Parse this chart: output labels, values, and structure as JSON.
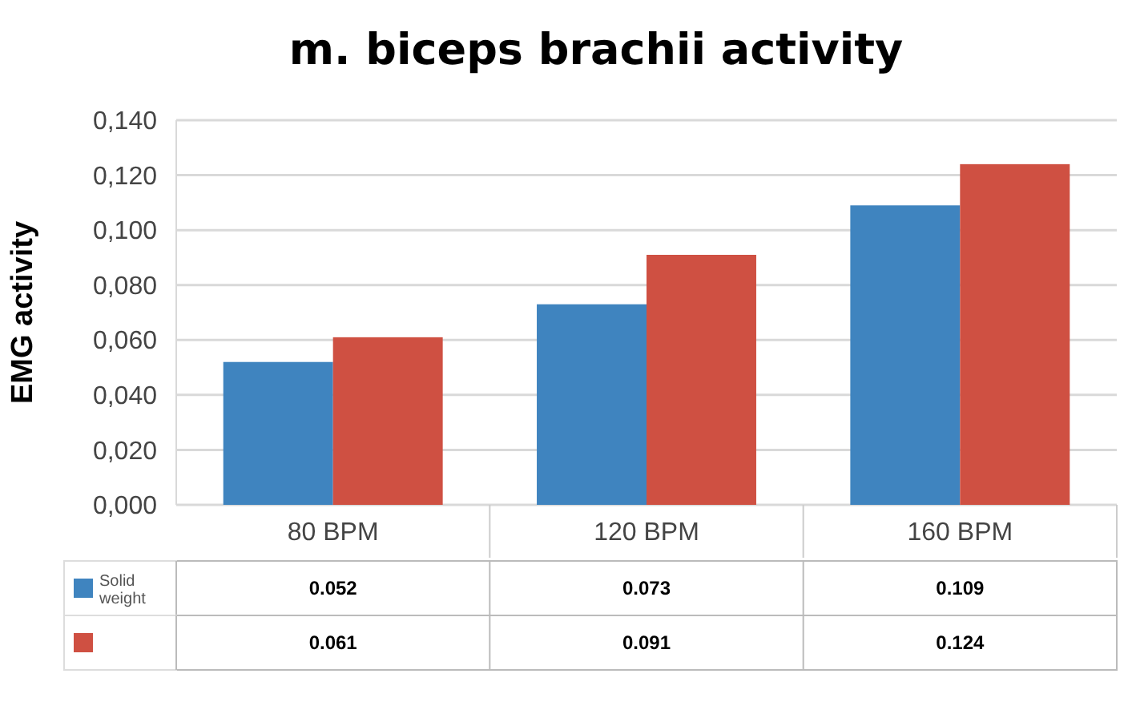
{
  "chart_data": {
    "type": "bar",
    "title": "m. biceps brachii activity",
    "ylabel": "EMG activity",
    "categories": [
      "80 BPM",
      "120 BPM",
      "160 BPM"
    ],
    "series": [
      {
        "name": "Solid weight",
        "color": "#3f84bf",
        "values": [
          0.052,
          0.073,
          0.109
        ]
      },
      {
        "color": "#cf5042",
        "values": [
          0.061,
          0.091,
          0.124
        ]
      }
    ],
    "ylim": [
      0,
      0.14
    ],
    "yticks": [
      {
        "value": 0,
        "label": "0,000"
      },
      {
        "value": 0.02,
        "label": "0,020"
      },
      {
        "value": 0.04,
        "label": "0,040"
      },
      {
        "value": 0.06,
        "label": "0,060"
      },
      {
        "value": 0.08,
        "label": "0,080"
      },
      {
        "value": 0.1,
        "label": "0,100"
      },
      {
        "value": 0.12,
        "label": "0,120"
      },
      {
        "value": 0.14,
        "label": "0,140"
      }
    ],
    "grid": "y",
    "data_labels": true,
    "legend": "bottom left"
  }
}
